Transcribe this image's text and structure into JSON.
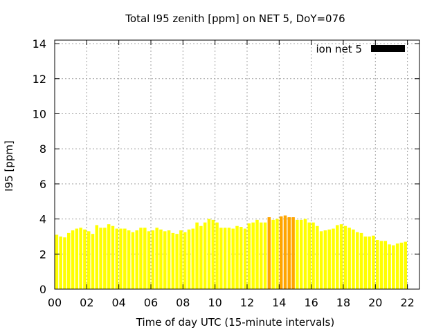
{
  "chart_data": {
    "type": "bar",
    "title": "Total I95 zenith [ppm] on NET 5, DoY=076",
    "xlabel": "Time of day UTC (15-minute intervals)",
    "ylabel": "I95 [ppm]",
    "xlim": [
      0,
      22.75
    ],
    "ylim": [
      0,
      14.2
    ],
    "x_ticks": [
      "00",
      "02",
      "04",
      "06",
      "08",
      "10",
      "12",
      "14",
      "16",
      "18",
      "20",
      "22"
    ],
    "y_ticks": [
      "0",
      "2",
      "4",
      "6",
      "8",
      "10",
      "12",
      "14"
    ],
    "grid": true,
    "legend_position": "top-right",
    "series": [
      {
        "name": "ion net 5",
        "legend_color": "#000000",
        "interval_hours": 0.25,
        "values": [
          3.1,
          3.0,
          2.95,
          3.2,
          3.35,
          3.45,
          3.5,
          3.4,
          3.3,
          3.15,
          3.65,
          3.5,
          3.5,
          3.7,
          3.6,
          3.45,
          3.45,
          3.45,
          3.35,
          3.25,
          3.35,
          3.5,
          3.5,
          3.3,
          3.35,
          3.5,
          3.4,
          3.3,
          3.35,
          3.2,
          3.15,
          3.35,
          3.25,
          3.4,
          3.45,
          3.8,
          3.6,
          3.8,
          4.0,
          3.95,
          3.8,
          3.5,
          3.5,
          3.5,
          3.45,
          3.6,
          3.55,
          3.45,
          3.75,
          3.8,
          3.95,
          3.8,
          3.8,
          4.1,
          3.95,
          4.0,
          4.15,
          4.2,
          4.1,
          4.1,
          3.95,
          3.95,
          4.0,
          3.8,
          3.8,
          3.6,
          3.3,
          3.35,
          3.4,
          3.45,
          3.65,
          3.7,
          3.6,
          3.5,
          3.4,
          3.25,
          3.2,
          3.0,
          3.0,
          3.05,
          2.8,
          2.75,
          2.75,
          2.55,
          2.5,
          2.6,
          2.65,
          2.7
        ]
      }
    ],
    "bar_colors": {
      "normal": "#ffff00",
      "elevated": "#ffa500",
      "elevated_threshold": 4.05
    }
  }
}
